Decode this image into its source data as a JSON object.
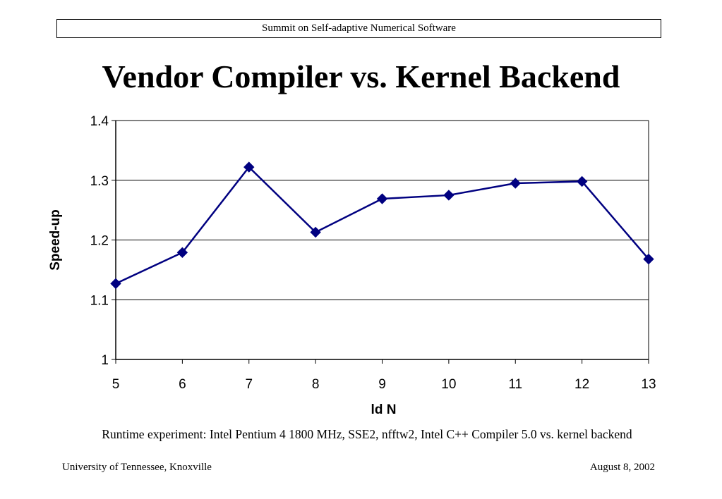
{
  "header": {
    "text": "Summit on Self-adaptive Numerical Software"
  },
  "title": "Vendor Compiler vs. Kernel Backend",
  "caption": "Runtime experiment: Intel Pentium 4 1800 MHz, SSE2, nfftw2, Intel C++ Compiler 5.0 vs. kernel backend",
  "footer": {
    "left": "University of Tennessee, Knoxville",
    "right": "August 8, 2002"
  },
  "colors": {
    "series": "#000080",
    "grid": "#000000",
    "axis": "#000000"
  },
  "chart_data": {
    "type": "line",
    "x": [
      5,
      6,
      7,
      8,
      9,
      10,
      11,
      12,
      13
    ],
    "series": [
      {
        "values": [
          1.127,
          1.179,
          1.322,
          1.213,
          1.269,
          1.275,
          1.295,
          1.298,
          1.168
        ]
      }
    ],
    "xlabel": "ld N",
    "ylabel": "Speed-up",
    "xlim": [
      5,
      13
    ],
    "ylim": [
      1,
      1.4
    ],
    "y_ticks": [
      1,
      1.1,
      1.2,
      1.3,
      1.4
    ],
    "y_tick_labels": [
      "1",
      "1.1",
      "1.2",
      "1.3",
      "1.4"
    ],
    "x_tick_labels": [
      "5",
      "6",
      "7",
      "8",
      "9",
      "10",
      "11",
      "12",
      "13"
    ],
    "grid": "horizontal",
    "marker": "diamond",
    "legend": "none"
  }
}
